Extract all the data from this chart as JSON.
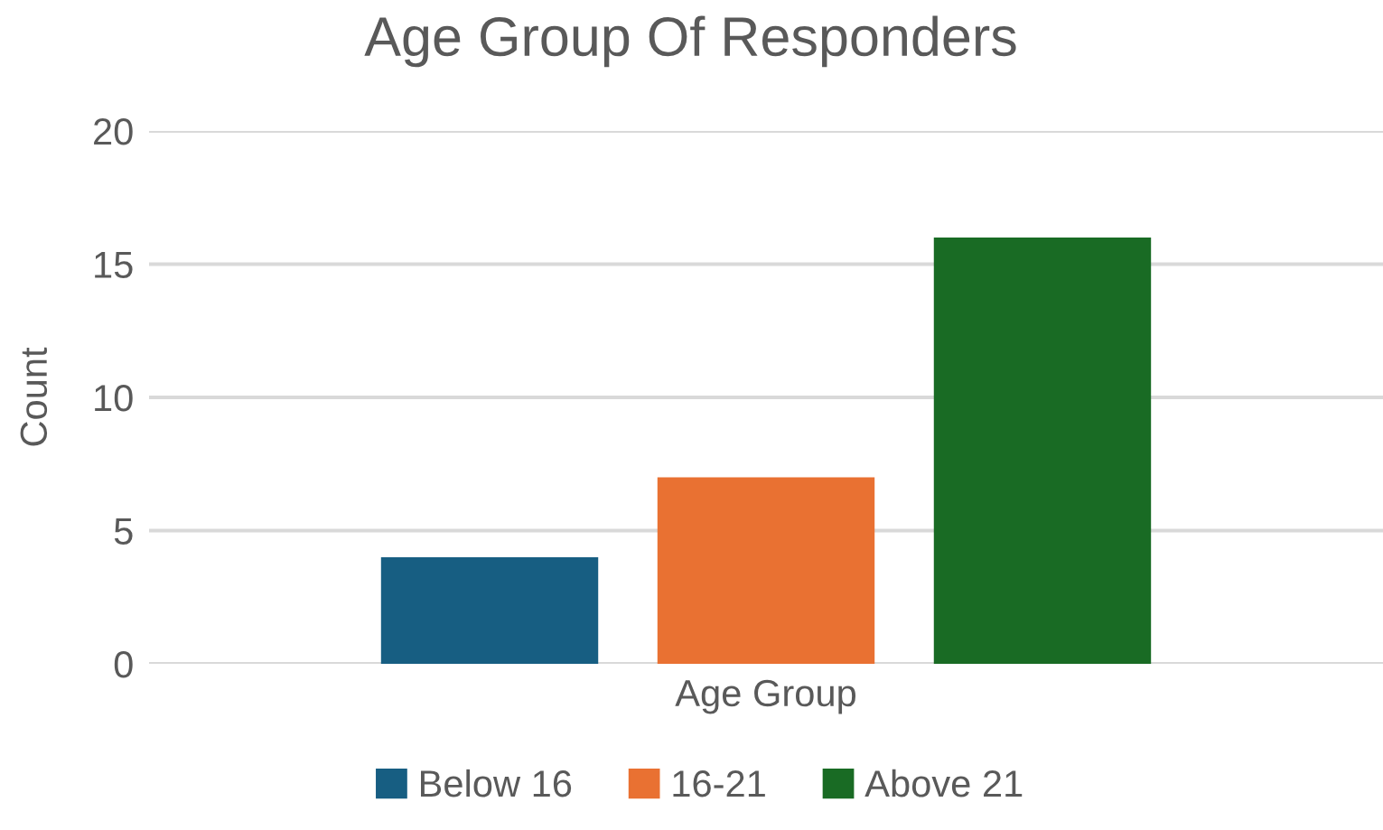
{
  "chart_data": {
    "type": "bar",
    "title": "Age Group Of Responders",
    "xlabel": null,
    "ylabel": "Count",
    "categories": [
      "Age Group"
    ],
    "series": [
      {
        "name": "Below 16",
        "color": "#175e82",
        "values": [
          4
        ]
      },
      {
        "name": "16-21",
        "color": "#e97132",
        "values": [
          7
        ]
      },
      {
        "name": "Above 21",
        "color": "#196b24",
        "values": [
          16
        ]
      }
    ],
    "ylim": [
      0,
      20
    ],
    "yticks": [
      0,
      5,
      10,
      15,
      20
    ],
    "grid": "y",
    "legend": "bottom"
  }
}
